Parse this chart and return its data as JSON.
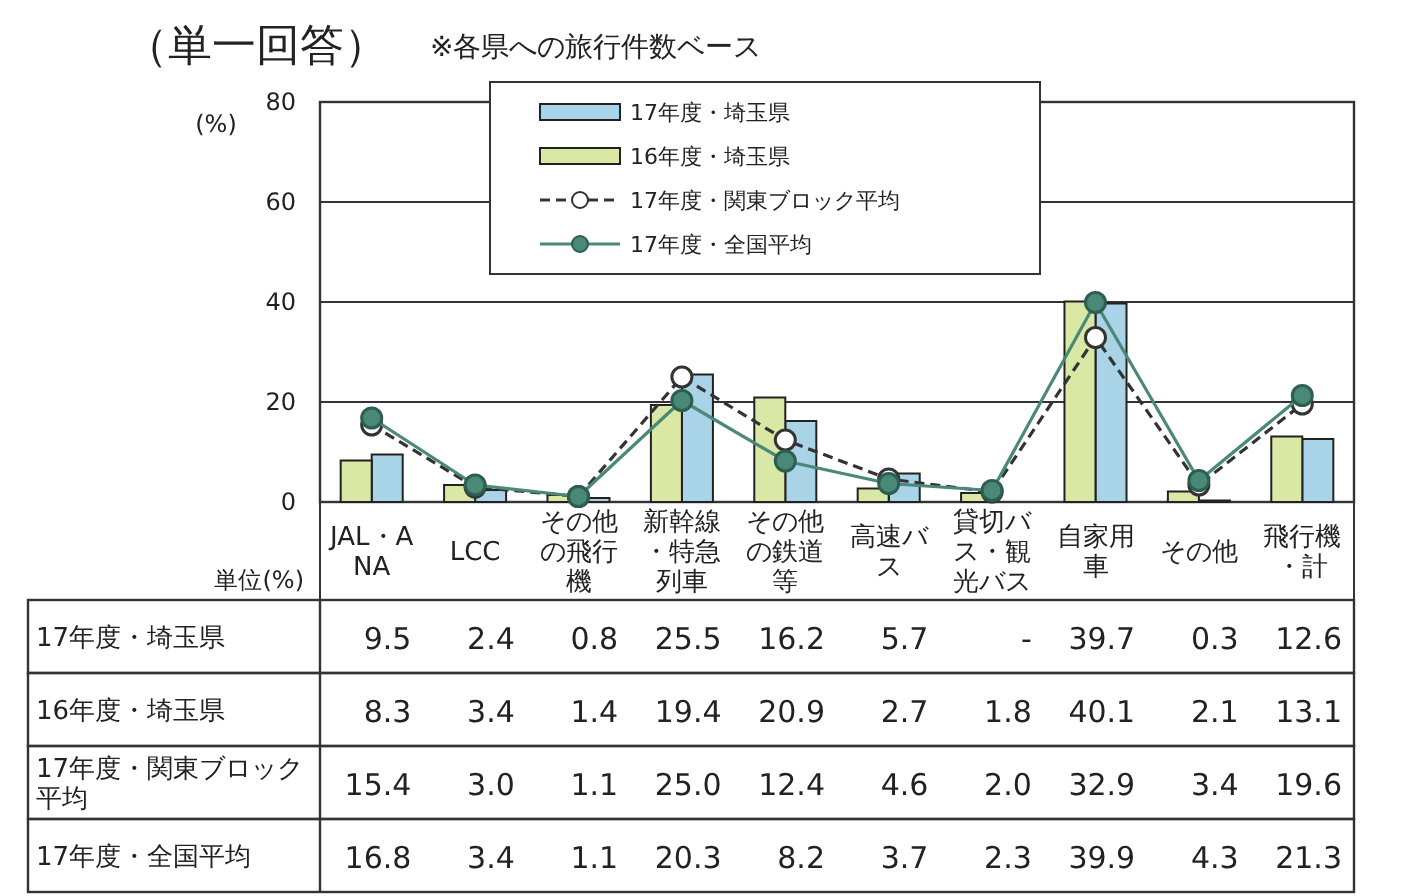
{
  "chart_data": {
    "type": "bar",
    "title": "（単一回答）",
    "subtitle": "※各県への旅行件数ベース",
    "ylabel": "(%)",
    "annotations": [
      "単位(%)"
    ],
    "categories": [
      "JAL・ANA",
      "LCC",
      "その他の飛行機",
      "新幹線・特急列車",
      "その他の鉄道等",
      "高速バス",
      "貸切バス・観光バス",
      "自家用車",
      "その他",
      "飛行機・計"
    ],
    "ylim": [
      0,
      80
    ],
    "yticks": [
      0,
      20,
      40,
      60,
      80
    ],
    "grid": "y",
    "legend": "top",
    "series": [
      {
        "name": "17年度・埼玉県",
        "color": "#a9d3e6",
        "values": [
          9.5,
          2.4,
          0.8,
          25.5,
          16.2,
          5.7,
          null,
          39.7,
          0.3,
          12.6
        ],
        "value_labels": [
          "9.5",
          "2.4",
          "0.8",
          "25.5",
          "16.2",
          "5.7",
          "-",
          "39.7",
          "0.3",
          "12.6"
        ]
      },
      {
        "name": "16年度・埼玉県",
        "color": "#d9e8a4",
        "values": [
          8.3,
          3.4,
          1.4,
          19.4,
          20.9,
          2.7,
          1.8,
          40.1,
          2.1,
          13.1
        ],
        "value_labels": [
          "8.3",
          "3.4",
          "1.4",
          "19.4",
          "20.9",
          "2.7",
          "1.8",
          "40.1",
          "2.1",
          "13.1"
        ]
      },
      {
        "name": "17年度・関東ブロック平均",
        "type": "line",
        "color": "#333333",
        "marker": "circle",
        "line_style": "dashed",
        "values": [
          15.4,
          3.0,
          1.1,
          25.0,
          12.4,
          4.6,
          2.0,
          32.9,
          3.4,
          19.6
        ],
        "value_labels": [
          "15.4",
          "3.0",
          "1.1",
          "25.0",
          "12.4",
          "4.6",
          "2.0",
          "32.9",
          "3.4",
          "19.6"
        ]
      },
      {
        "name": "17年度・全国平均",
        "type": "line",
        "color": "#4a8878",
        "marker": "circle",
        "line_style": "solid",
        "values": [
          16.8,
          3.4,
          1.1,
          20.3,
          8.2,
          3.7,
          2.3,
          39.9,
          4.3,
          21.3
        ],
        "value_labels": [
          "16.8",
          "3.4",
          "1.1",
          "20.3",
          "8.2",
          "3.7",
          "2.3",
          "39.9",
          "4.3",
          "21.3"
        ]
      }
    ]
  }
}
